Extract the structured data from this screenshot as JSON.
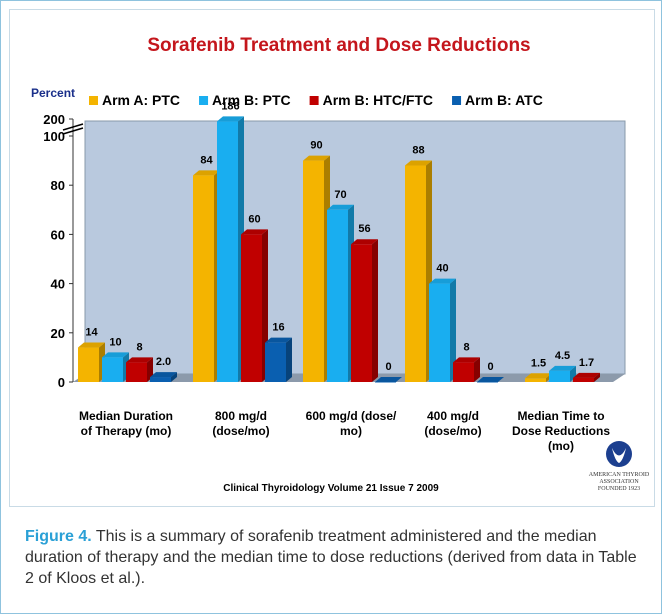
{
  "chart_data": {
    "type": "bar3d",
    "title": "Sorafenib Treatment and Dose Reductions",
    "ylabel": "Percent",
    "categories": [
      "Median Duration of Therapy (mo)",
      "800 mg/d (dose/mo)",
      "600 mg/d (dose/ mo)",
      "400 mg/d (dose/mo)",
      "Median Time to Dose Reductions (mo)"
    ],
    "series": [
      {
        "name": "Arm A: PTC",
        "color": "#f4b400",
        "values": [
          14,
          84,
          90,
          88,
          1.5
        ]
      },
      {
        "name": "Arm B: PTC",
        "color": "#19aef0",
        "values": [
          10,
          186,
          70,
          40,
          4.5
        ]
      },
      {
        "name": "Arm B: HTC/FTC",
        "color": "#c00000",
        "values": [
          8,
          60,
          56,
          8,
          1.7
        ]
      },
      {
        "name": "Arm B: ATC",
        "color": "#0a5fb0",
        "values": [
          2.0,
          16,
          0,
          0,
          null
        ],
        "value_labels": [
          "2.0",
          "16",
          "0",
          "0",
          null
        ]
      }
    ],
    "ylim": [
      0,
      200
    ],
    "yticks": [
      0,
      20,
      40,
      60,
      80,
      100,
      200
    ],
    "axis_break": true,
    "source": "Clinical Thyroidology Volume 21 Issue 7 2009",
    "logo": {
      "name": "AMERICAN THYROID ASSOCIATION",
      "founded": "FOUNDED 1923",
      "copyright": "©"
    }
  },
  "caption": {
    "label": "Figure 4.",
    "text": "This is a summary of sorafenib treatment administered and the median duration of therapy and the median time to dose reductions (derived from data in Table 2 of Kloos et al.)."
  }
}
